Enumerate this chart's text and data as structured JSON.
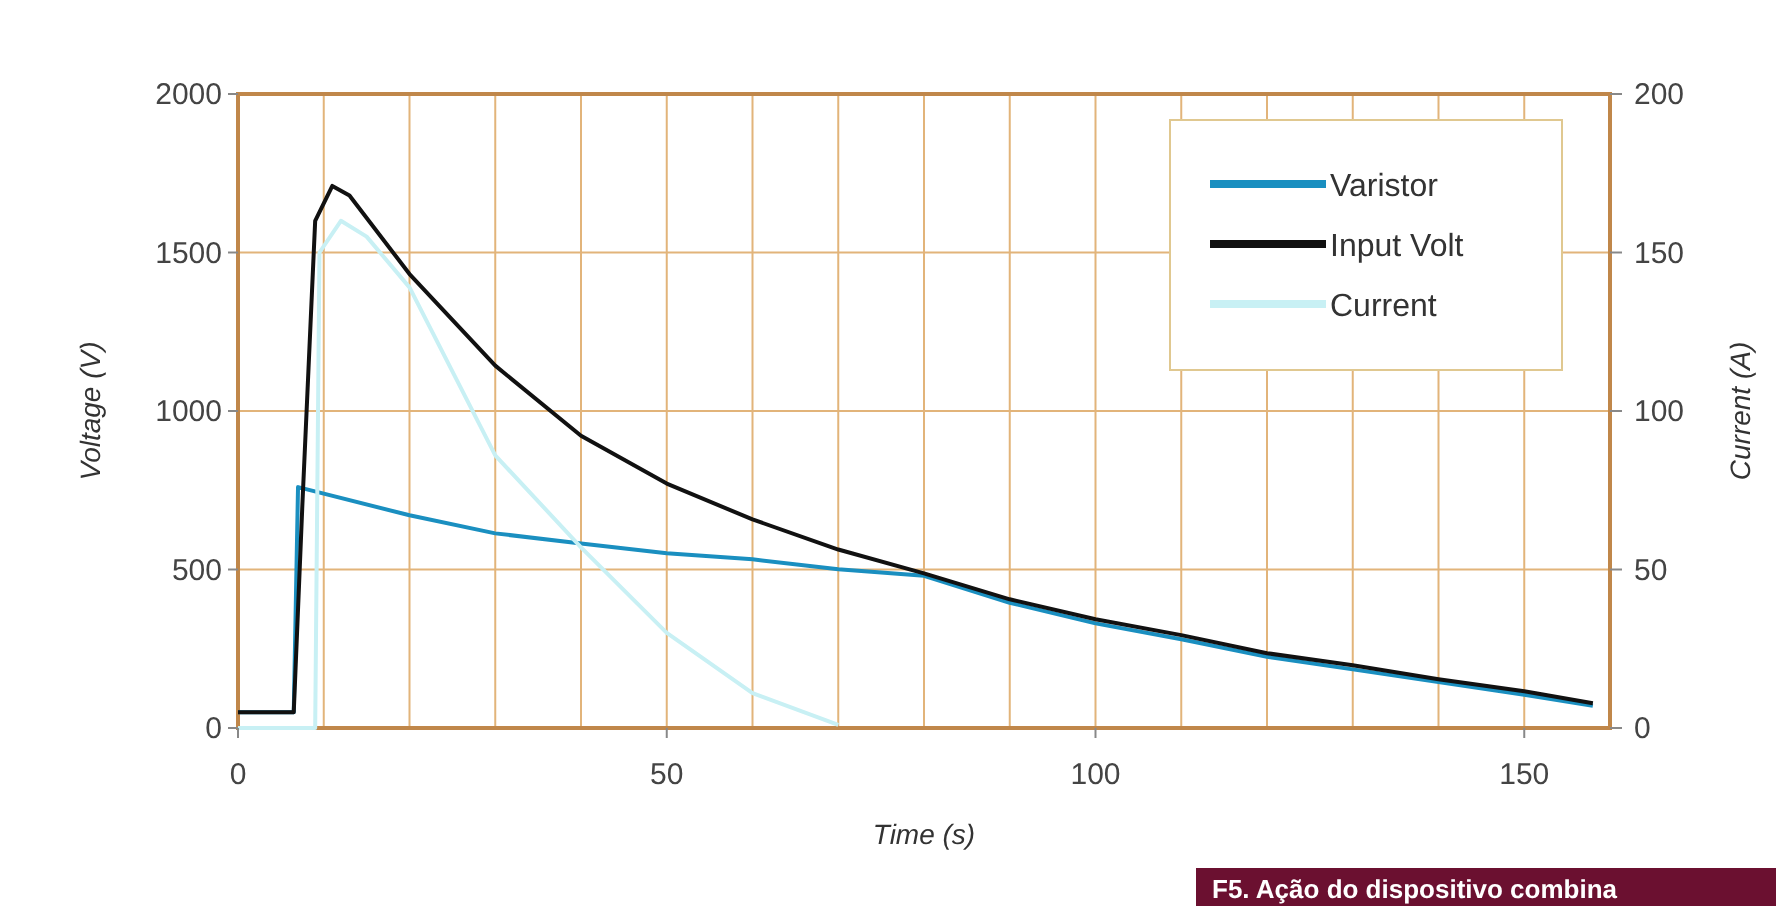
{
  "chart_data": {
    "type": "line",
    "xlabel": "Time (s)",
    "ylabel": "Voltage (V)",
    "y2label": "Current (A)",
    "xlim": [
      0,
      160
    ],
    "xticks": [
      0,
      50,
      100,
      150
    ],
    "ylim": [
      0,
      2000
    ],
    "yticks": [
      0,
      500,
      1000,
      1500,
      2000
    ],
    "y2lim": [
      0,
      200
    ],
    "y2ticks": [
      0,
      50,
      100,
      150,
      200
    ],
    "grid": true,
    "legend": "top right",
    "line_style": "solid",
    "series": [
      {
        "name": "Varistor",
        "color": "#1a8fc0",
        "x": [
          0,
          6.5,
          7,
          20,
          30,
          40,
          50,
          60,
          70,
          80,
          90,
          100,
          110,
          120,
          130,
          140,
          150,
          158
        ],
        "values": [
          50,
          50,
          760,
          671,
          614,
          582,
          551,
          532,
          501,
          480,
          395,
          330,
          280,
          225,
          185,
          145,
          105,
          70
        ]
      },
      {
        "name": "Input Volt",
        "color": "#111111",
        "x": [
          0,
          6.5,
          7.5,
          9,
          11,
          13,
          20,
          30,
          40,
          50,
          60,
          70,
          80,
          90,
          100,
          110,
          120,
          130,
          140,
          150,
          158
        ],
        "values": [
          50,
          50,
          700,
          1600,
          1710,
          1680,
          1432,
          1143,
          922,
          771,
          658,
          563,
          488,
          406,
          343,
          293,
          236,
          198,
          154,
          116,
          78
        ]
      },
      {
        "name": "Current",
        "color": "#c8f0f4",
        "axis": "y2",
        "x": [
          0,
          9,
          9.5,
          12,
          15,
          20,
          30,
          40,
          50,
          60,
          70
        ],
        "values": [
          0,
          0,
          150,
          160,
          155,
          139,
          86,
          57,
          30,
          11,
          1
        ]
      }
    ],
    "annotations": [
      "F5. Ação do dispositivo combina"
    ]
  }
}
